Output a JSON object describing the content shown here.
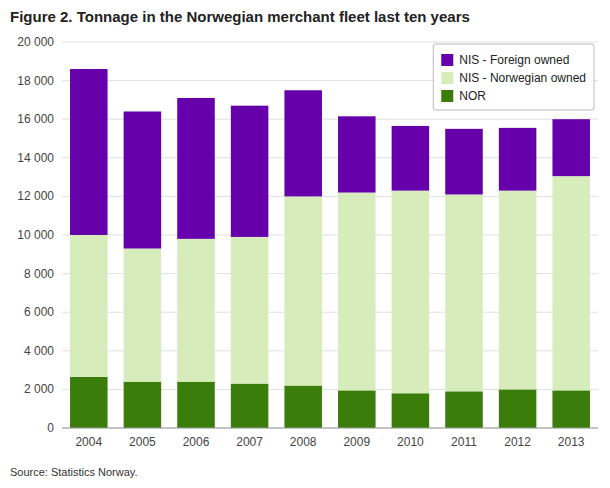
{
  "chart_data": {
    "type": "bar",
    "stacked": true,
    "title": "Figure 2. Tonnage in the Norwegian merchant fleet last ten years",
    "annotations": [
      "Source: Statistics Norway."
    ],
    "categories": [
      "2004",
      "2005",
      "2006",
      "2007",
      "2008",
      "2009",
      "2010",
      "2011",
      "2012",
      "2013"
    ],
    "series": [
      {
        "name": "NOR",
        "color": "#3a7d0a",
        "values": [
          2650,
          2400,
          2400,
          2300,
          2200,
          1950,
          1800,
          1900,
          2000,
          1950
        ]
      },
      {
        "name": "NIS - Norwegian owned",
        "color": "#d6edbb",
        "values": [
          7350,
          6900,
          7400,
          7600,
          9800,
          10250,
          10500,
          10200,
          10300,
          11100
        ]
      },
      {
        "name": "NIS - Foreign owned",
        "color": "#6600aa",
        "values": [
          8600,
          7100,
          7300,
          6800,
          5500,
          3950,
          3350,
          3400,
          3250,
          2950
        ]
      }
    ],
    "ylim": [
      0,
      20000
    ],
    "yticks": [
      0,
      {
        "value": 2000,
        "label": "2 000"
      },
      {
        "value": 4000,
        "label": "4 000"
      },
      {
        "value": 6000,
        "label": "6 000"
      },
      {
        "value": 8000,
        "label": "8 000"
      },
      {
        "value": 10000,
        "label": "10 000"
      },
      {
        "value": 12000,
        "label": "12 000"
      },
      {
        "value": 14000,
        "label": "14 000"
      },
      {
        "value": 16000,
        "label": "16 000"
      },
      {
        "value": 18000,
        "label": "18 000"
      },
      {
        "value": 20000,
        "label": "20 000"
      }
    ],
    "grid": true,
    "legend": "upper right"
  }
}
